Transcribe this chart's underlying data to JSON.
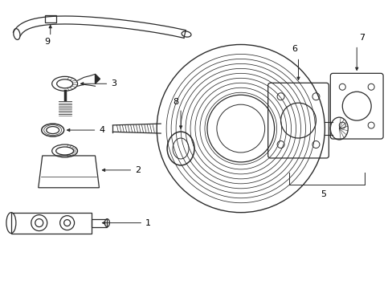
{
  "background_color": "#ffffff",
  "line_color": "#2a2a2a",
  "text_color": "#000000",
  "fig_width": 4.89,
  "fig_height": 3.6,
  "dpi": 100
}
